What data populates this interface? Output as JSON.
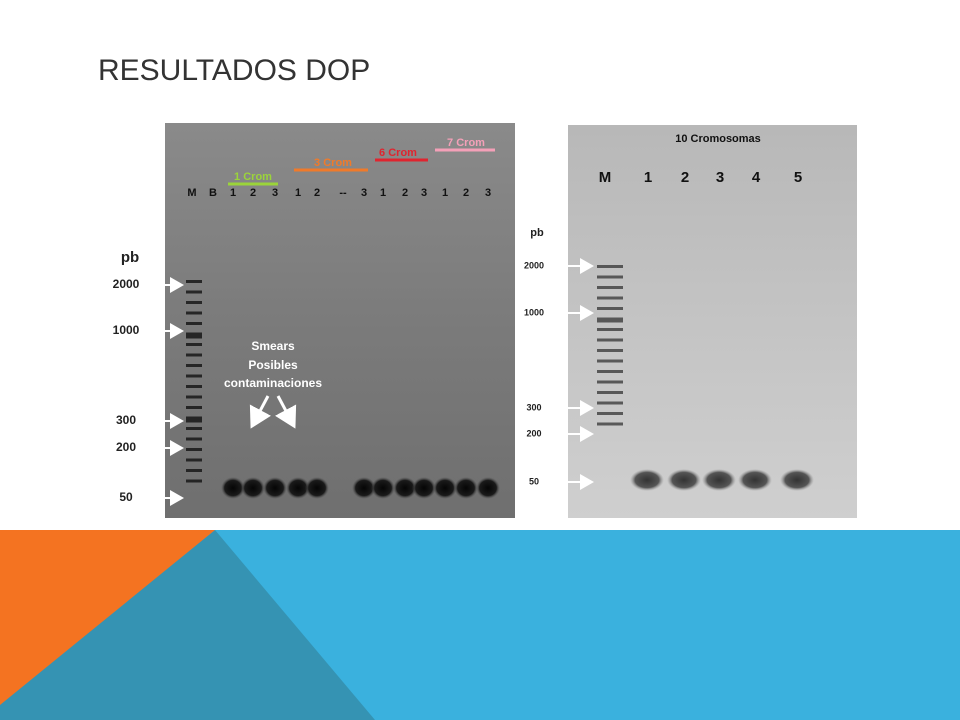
{
  "header": {
    "title": "RESULTADOS DOP"
  },
  "gel_left": {
    "unit": "pb",
    "sizes": [
      "2000",
      "1000",
      "300",
      "200",
      "50"
    ],
    "groups": [
      {
        "label": "1 Crom",
        "color": "#9bd43a"
      },
      {
        "label": "3 Crom",
        "color": "#f07a2a"
      },
      {
        "label": "6 Crom",
        "color": "#e0242f"
      },
      {
        "label": "7 Crom",
        "color": "#f4a0b8"
      }
    ],
    "lanes": [
      "M",
      "B",
      "1",
      "2",
      "3",
      "1",
      "2",
      "--",
      "3",
      "1",
      "2",
      "3",
      "1",
      "2",
      "3"
    ],
    "annotation": [
      "Smears",
      "Posibles",
      "contaminaciones"
    ]
  },
  "gel_right": {
    "title": "10 Cromosomas",
    "unit": "pb",
    "sizes": [
      "2000",
      "1000",
      "300",
      "200",
      "50"
    ],
    "lanes": [
      "M",
      "1",
      "2",
      "3",
      "4",
      "5"
    ]
  }
}
